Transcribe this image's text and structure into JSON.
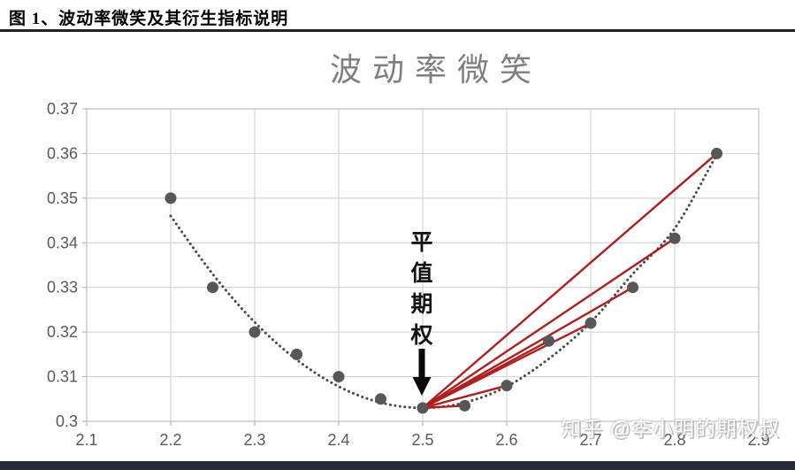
{
  "figure_header": {
    "label": "图 1、波动率微笑及其衍生指标说明"
  },
  "watermark": {
    "text": "知乎 @李小明的期权叔"
  },
  "bottom_bar_color": "#272c38",
  "header_rule_color": "#1d222e",
  "chart_data": {
    "type": "scatter",
    "title": "波动率微笑",
    "xlabel": "",
    "ylabel": "",
    "xlim": [
      2.1,
      2.9
    ],
    "ylim": [
      0.3,
      0.37
    ],
    "grid": true,
    "x_ticks": [
      "2.1",
      "2.2",
      "2.3",
      "2.4",
      "2.5",
      "2.6",
      "2.7",
      "2.8",
      "2.9"
    ],
    "x_tick_values": [
      2.1,
      2.2,
      2.3,
      2.4,
      2.5,
      2.6,
      2.7,
      2.8,
      2.9
    ],
    "y_ticks": [
      "0.3",
      "0.31",
      "0.32",
      "0.33",
      "0.34",
      "0.35",
      "0.36",
      "0.37"
    ],
    "y_tick_values": [
      0.3,
      0.31,
      0.32,
      0.33,
      0.34,
      0.35,
      0.36,
      0.37
    ],
    "points": [
      [
        2.2,
        0.35
      ],
      [
        2.25,
        0.33
      ],
      [
        2.3,
        0.32
      ],
      [
        2.35,
        0.315
      ],
      [
        2.4,
        0.31
      ],
      [
        2.45,
        0.305
      ],
      [
        2.5,
        0.303
      ],
      [
        2.55,
        0.3035
      ],
      [
        2.6,
        0.308
      ],
      [
        2.65,
        0.318
      ],
      [
        2.7,
        0.322
      ],
      [
        2.75,
        0.33
      ],
      [
        2.8,
        0.341
      ],
      [
        2.85,
        0.36
      ]
    ],
    "trend": [
      [
        2.2,
        0.346
      ],
      [
        2.25,
        0.333
      ],
      [
        2.3,
        0.3222
      ],
      [
        2.35,
        0.3138
      ],
      [
        2.4,
        0.3078
      ],
      [
        2.45,
        0.3042
      ],
      [
        2.5,
        0.303
      ],
      [
        2.55,
        0.3042
      ],
      [
        2.6,
        0.3078
      ],
      [
        2.65,
        0.314
      ],
      [
        2.7,
        0.3222
      ],
      [
        2.75,
        0.333
      ],
      [
        2.8,
        0.3432
      ],
      [
        2.85,
        0.3598
      ]
    ],
    "atm_point": [
      2.5,
      0.303
    ],
    "red_line_targets": [
      [
        2.55,
        0.3035
      ],
      [
        2.6,
        0.308
      ],
      [
        2.65,
        0.318
      ],
      [
        2.7,
        0.322
      ],
      [
        2.75,
        0.33
      ],
      [
        2.8,
        0.341
      ],
      [
        2.85,
        0.36
      ]
    ],
    "annotation": {
      "text": "平值期权",
      "arrow": "down",
      "target": [
        2.5,
        0.303
      ]
    },
    "colors": {
      "marker": "#575757",
      "trend": "#4a4a4a",
      "red_line": "#b01e1e",
      "grid": "#d6d6d6",
      "border": "#c4c4c4",
      "tick": "#b5b5b5",
      "axis_text": "#595959",
      "title": "#7f7f7f",
      "arrow": "#0a0a0a"
    }
  }
}
